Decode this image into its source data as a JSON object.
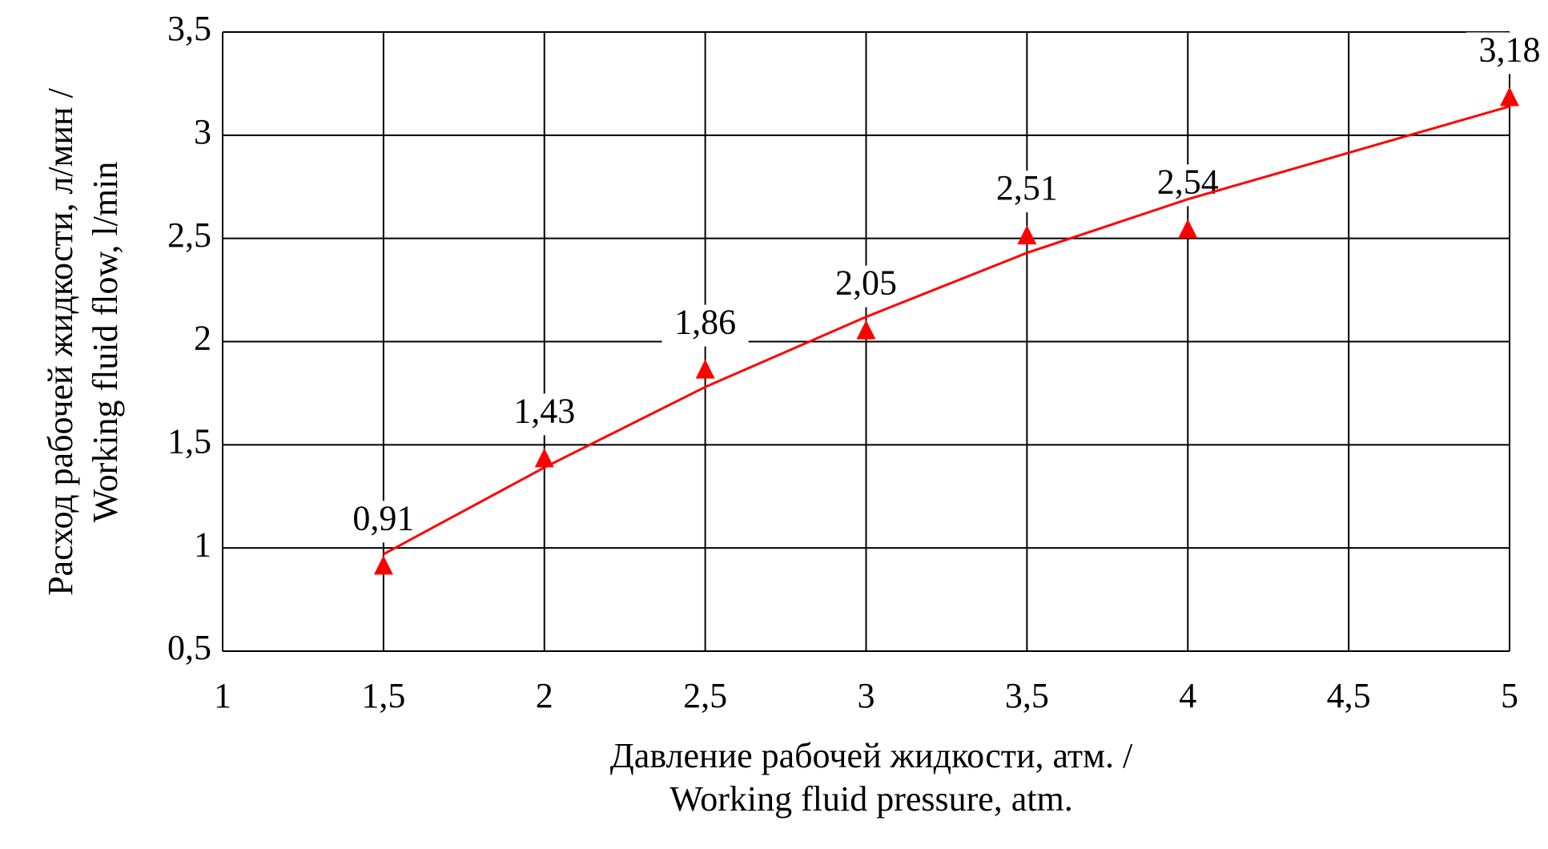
{
  "chart_data": {
    "type": "scatter",
    "x_label": [
      "Давление рабочей жидкости, атм. /",
      "Working fluid pressure, atm."
    ],
    "y_label": [
      "Расход рабочей жидкости, л/мин /",
      "Working fluid flow, l/min"
    ],
    "x": [
      1.5,
      2,
      2.5,
      3,
      3.5,
      4,
      5
    ],
    "series": [
      {
        "color": "#ff0000",
        "marker": "triangle",
        "values": [
          0.91,
          1.43,
          1.86,
          2.05,
          2.51,
          2.54,
          3.18
        ],
        "value_labels": [
          "0,91",
          "1,43",
          "1,86",
          "2,05",
          "2,51",
          "2,54",
          "3,18"
        ]
      },
      {
        "color": "#ff0000",
        "line": true,
        "values": [
          0.97,
          1.39,
          1.78,
          2.12,
          2.43,
          2.69,
          3.14
        ]
      }
    ],
    "xlim": [
      1,
      5
    ],
    "xticks": [
      1,
      {
        "value": 1.5,
        "label": "1,5"
      },
      2,
      {
        "value": 2.5,
        "label": "2,5"
      },
      3,
      {
        "value": 3.5,
        "label": "3,5"
      },
      4,
      {
        "value": 4.5,
        "label": "4,5"
      },
      5
    ],
    "ylim": [
      0.5,
      3.5
    ],
    "yticks": [
      {
        "value": 0.5,
        "label": "0,5"
      },
      1,
      {
        "value": 1.5,
        "label": "1,5"
      },
      2,
      {
        "value": 2.5,
        "label": "2,5"
      },
      3,
      {
        "value": 3.5,
        "label": "3,5"
      }
    ],
    "grid": true
  }
}
